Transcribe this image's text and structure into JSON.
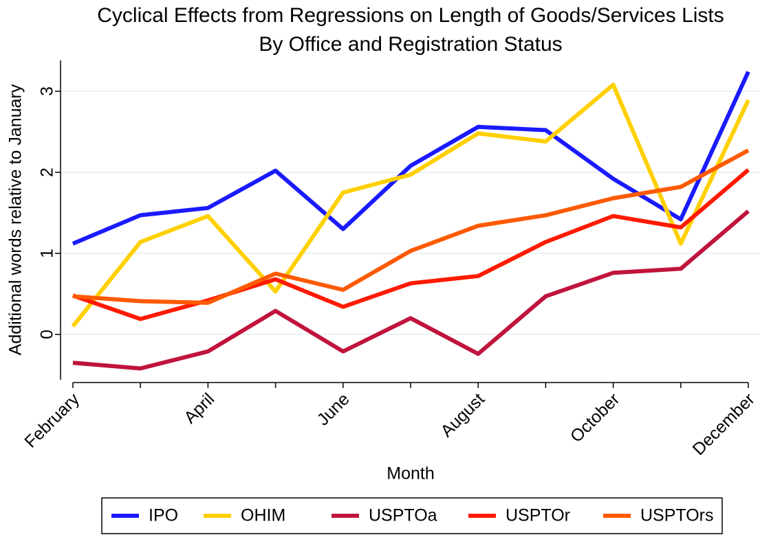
{
  "chart_data": {
    "type": "line",
    "title": "Cyclical Effects from Regressions on Length of Goods/Services Lists",
    "subtitle": "By Office and Registration Status",
    "x_label": "Month",
    "y_label": "Additional words relative to January",
    "categories": [
      "February",
      null,
      "April",
      null,
      "June",
      null,
      "August",
      null,
      "October",
      null,
      "December"
    ],
    "series": [
      {
        "name": "IPO",
        "color": "#1a1aff",
        "values": [
          1.12,
          1.47,
          1.56,
          2.02,
          1.3,
          2.08,
          2.56,
          2.52,
          1.92,
          1.42,
          3.24
        ]
      },
      {
        "name": "OHIM",
        "color": "#ffd000",
        "values": [
          0.1,
          1.14,
          1.46,
          0.53,
          1.75,
          1.97,
          2.48,
          2.38,
          3.08,
          1.12,
          2.89
        ]
      },
      {
        "name": "USPTOa",
        "color": "#c0143c",
        "values": [
          -0.35,
          -0.42,
          -0.21,
          0.29,
          -0.21,
          0.2,
          -0.24,
          0.47,
          0.76,
          0.81,
          1.52
        ]
      },
      {
        "name": "USPTOr",
        "color": "#ff1a00",
        "values": [
          0.48,
          0.19,
          0.42,
          0.68,
          0.34,
          0.63,
          0.72,
          1.14,
          1.46,
          1.32,
          2.03
        ]
      },
      {
        "name": "USPTOrs",
        "color": "#ff5a00",
        "values": [
          0.47,
          0.41,
          0.39,
          0.75,
          0.55,
          1.03,
          1.34,
          1.47,
          1.68,
          1.82,
          2.27
        ]
      }
    ],
    "ylim": [
      -0.56,
      3.38
    ],
    "yticks": [
      0,
      1,
      2,
      3
    ],
    "grid": true,
    "legend": "bottom"
  }
}
